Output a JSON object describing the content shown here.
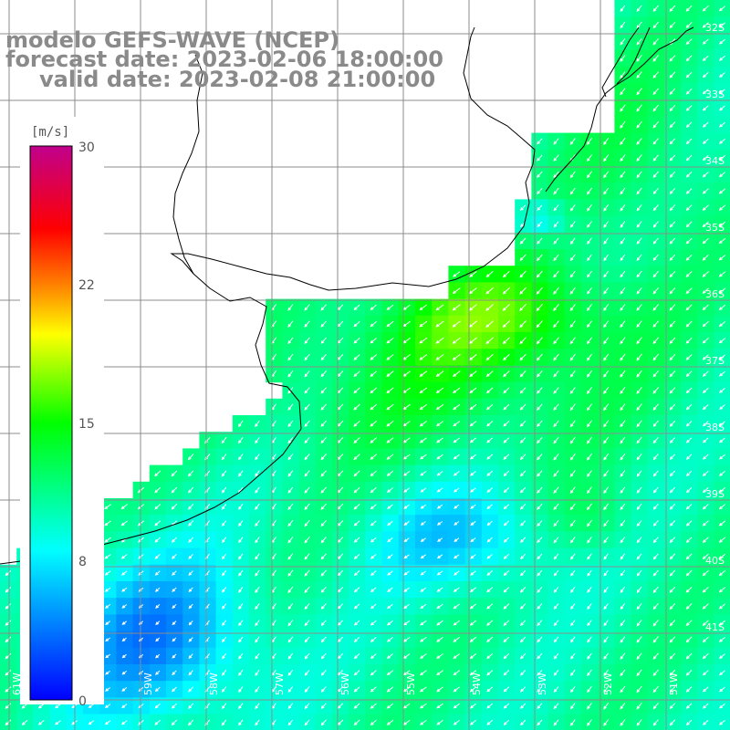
{
  "header": {
    "line1": "modelo GEFS-WAVE (NCEP)",
    "line2": "forecast date: 2023-02-06 18:00:00",
    "line3": "valid date: 2023-02-08 21:00:00"
  },
  "colorbar": {
    "unit": "[m/s]",
    "ticks": [
      "30",
      "22",
      "15",
      "8",
      "0"
    ],
    "colors": [
      "#0000ff",
      "#00ffff",
      "#00ff00",
      "#ffff00",
      "#ff8000",
      "#ff0000",
      "#c0008c"
    ]
  },
  "lat_labels": [
    "32S",
    "33S",
    "34S",
    "35S",
    "36S",
    "37S",
    "38S",
    "39S",
    "40S",
    "41S"
  ],
  "lon_labels": [
    "61W",
    "60W",
    "59W",
    "58W",
    "57W",
    "56W",
    "55W",
    "54W",
    "53W",
    "52W",
    "51W"
  ],
  "field": {
    "name": "wind speed",
    "unit": "m/s",
    "direction": "arrows point toward the southwest"
  },
  "colors": {
    "land": "#ffffff",
    "grid": "#8c8c8c",
    "coast": "#000000",
    "label_text": "#8a8a8a"
  }
}
